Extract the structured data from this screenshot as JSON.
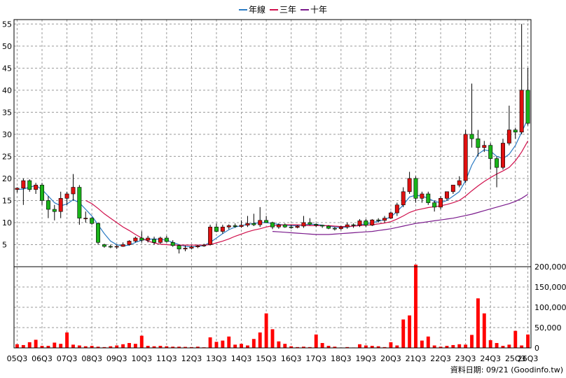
{
  "legend": {
    "items": [
      {
        "label": "年線",
        "color": "#2b7bc4"
      },
      {
        "label": "三年",
        "color": "#d0104c"
      },
      {
        "label": "十年",
        "color": "#7a1a8c"
      }
    ]
  },
  "source_note": "資料日期: 09/21 (Goodinfo.tw)",
  "colors": {
    "up": "#e01010",
    "down": "#19b319",
    "volume": "#ff0000"
  },
  "chart_data": {
    "type": "candlestick",
    "x_tick_labels": [
      "05Q3",
      "06Q3",
      "07Q3",
      "08Q3",
      "09Q3",
      "10Q3",
      "11Q3",
      "12Q3",
      "13Q3",
      "14Q3",
      "15Q3",
      "16Q3",
      "17Q3",
      "18Q3",
      "19Q3",
      "20Q3",
      "21Q3",
      "22Q3",
      "23Q3",
      "24Q3",
      "25Q3",
      "26Q3"
    ],
    "price_axis": {
      "min": 0,
      "max": 56,
      "ticks": [
        5,
        10,
        15,
        20,
        25,
        30,
        35,
        40,
        45,
        50,
        55
      ]
    },
    "volume_axis": {
      "min": 0,
      "max": 200000,
      "ticks": [
        0,
        50000,
        100000,
        150000,
        200000
      ],
      "tick_labels": [
        "0",
        "50,000",
        "100,000",
        "150,000",
        "200,000"
      ]
    },
    "candles": [
      [
        17.5,
        18,
        16.8,
        17.8
      ],
      [
        17.8,
        20,
        14,
        19.5
      ],
      [
        19.5,
        19.8,
        17,
        17.5
      ],
      [
        17.5,
        19,
        16.5,
        18.5
      ],
      [
        18.5,
        19,
        14,
        15
      ],
      [
        15,
        16,
        11,
        13
      ],
      [
        13,
        14,
        10.5,
        12.5
      ],
      [
        12.5,
        17,
        11,
        15.5
      ],
      [
        15.5,
        17,
        14,
        16.5
      ],
      [
        16.5,
        21,
        15,
        18
      ],
      [
        18,
        18.5,
        9.5,
        11
      ],
      [
        11,
        12.5,
        10,
        11
      ],
      [
        11,
        11.2,
        9.5,
        9.8
      ],
      [
        9.8,
        10,
        5,
        5.5
      ],
      [
        5,
        5.2,
        4.3,
        4.6
      ],
      [
        4.6,
        5,
        4.2,
        4.5
      ],
      [
        4.5,
        5,
        4,
        4.6
      ],
      [
        4.6,
        5.5,
        4.5,
        5
      ],
      [
        5,
        6,
        4.8,
        5.8
      ],
      [
        5.8,
        6.8,
        5.5,
        6.5
      ],
      [
        6.5,
        8,
        5.5,
        6
      ],
      [
        6,
        7,
        5.5,
        6.5
      ],
      [
        6.2,
        6.8,
        5,
        5.5
      ],
      [
        5.5,
        6.8,
        5.2,
        6.5
      ],
      [
        6.5,
        7,
        5.5,
        5.7
      ],
      [
        5.5,
        6,
        4.5,
        4.8
      ],
      [
        4.8,
        5,
        3,
        4
      ],
      [
        4,
        4.8,
        3.5,
        4.2
      ],
      [
        4.2,
        4.8,
        3.9,
        4.5
      ],
      [
        4.5,
        5,
        4.2,
        4.7
      ],
      [
        4.7,
        5.2,
        4.5,
        4.9
      ],
      [
        5,
        9.5,
        4.8,
        9
      ],
      [
        9,
        9.8,
        7.8,
        8
      ],
      [
        8,
        9.5,
        7.5,
        9
      ],
      [
        9,
        9.6,
        8.5,
        9.3
      ],
      [
        9.3,
        9.8,
        8.8,
        9.1
      ],
      [
        9.1,
        10.5,
        8.8,
        9.4
      ],
      [
        9.4,
        11.5,
        9,
        9.8
      ],
      [
        9.8,
        12,
        9.2,
        9.5
      ],
      [
        9.5,
        13.5,
        9,
        10.5
      ],
      [
        10.5,
        11.5,
        10,
        10
      ],
      [
        10,
        10.2,
        8.5,
        9
      ],
      [
        9,
        9.8,
        8.6,
        9.5
      ],
      [
        9.5,
        9.8,
        8.8,
        9
      ],
      [
        9,
        9.5,
        8.6,
        8.9
      ],
      [
        8.9,
        9.4,
        8.7,
        9.2
      ],
      [
        9.2,
        11.5,
        8.8,
        10
      ],
      [
        10,
        11,
        9.4,
        9.6
      ],
      [
        9.6,
        9.8,
        9,
        9.4
      ],
      [
        9.4,
        9.5,
        8.8,
        9.2
      ],
      [
        9.2,
        9.4,
        8.5,
        8.7
      ],
      [
        8.7,
        9,
        8.2,
        8.6
      ],
      [
        8.6,
        9.3,
        8.3,
        9
      ],
      [
        9,
        10,
        8.6,
        9.5
      ],
      [
        9.5,
        9.8,
        8.8,
        9.4
      ],
      [
        9.4,
        10.8,
        9,
        10.4
      ],
      [
        10.4,
        10.8,
        9,
        9.4
      ],
      [
        9.4,
        10.8,
        9.2,
        10.6
      ],
      [
        10.6,
        11,
        10,
        10.5
      ],
      [
        10.5,
        11.5,
        10,
        11
      ],
      [
        11,
        12.5,
        10.8,
        12.2
      ],
      [
        12.2,
        14.5,
        11.5,
        14
      ],
      [
        14,
        18,
        13.5,
        17
      ],
      [
        17,
        21.5,
        16.5,
        20
      ],
      [
        20,
        20.5,
        14.5,
        15.5
      ],
      [
        15.5,
        17,
        14.5,
        16.5
      ],
      [
        16.5,
        17,
        14,
        14.5
      ],
      [
        14.5,
        15,
        12.5,
        13.5
      ],
      [
        13.5,
        16,
        13,
        15.5
      ],
      [
        15.5,
        17,
        15,
        17
      ],
      [
        17,
        18.5,
        16.5,
        18.5
      ],
      [
        18.5,
        20.5,
        18,
        19.5
      ],
      [
        19.5,
        31,
        19,
        30
      ],
      [
        30,
        41.5,
        27,
        29
      ],
      [
        29,
        31,
        25,
        27
      ],
      [
        27,
        28.5,
        26,
        27.5
      ],
      [
        27.5,
        28,
        22,
        24.5
      ],
      [
        24.5,
        25,
        18,
        22.5
      ],
      [
        22.5,
        29,
        22,
        28
      ],
      [
        28,
        36.5,
        27.5,
        31
      ],
      [
        31,
        31.5,
        29,
        30.5
      ],
      [
        30.5,
        55,
        30,
        40
      ],
      [
        40,
        45,
        32,
        32.5
      ]
    ],
    "volumes": [
      9000,
      7000,
      14000,
      20000,
      5000,
      5000,
      13000,
      10000,
      38000,
      8000,
      6000,
      4000,
      5000,
      3000,
      2000,
      4000,
      6000,
      9000,
      12000,
      10000,
      30000,
      5000,
      4000,
      5000,
      4000,
      3000,
      3000,
      2500,
      2000,
      3000,
      1500,
      26000,
      15000,
      18000,
      28000,
      8000,
      10000,
      6000,
      22000,
      38000,
      85000,
      46000,
      16000,
      10000,
      4000,
      2000,
      3000,
      2000,
      33000,
      12000,
      5000,
      3000,
      1000,
      2000,
      1000,
      9000,
      6000,
      5000,
      4000,
      2000,
      14000,
      6000,
      70000,
      80000,
      205000,
      18000,
      28000,
      6000,
      3000,
      5000,
      7000,
      9000,
      8000,
      32000,
      122000,
      85000,
      19000,
      12000,
      5000,
      8000,
      42000,
      6000,
      33000
    ],
    "moving_averages": {
      "年線": [
        17.5,
        17.6,
        18,
        18.4,
        17.5,
        16,
        14.5,
        13.8,
        14.2,
        15.2,
        14.5,
        13,
        11.5,
        9.5,
        7.5,
        5.8,
        5,
        4.7,
        4.9,
        5.5,
        6,
        6.2,
        6.3,
        6.2,
        6,
        5.5,
        5,
        4.6,
        4.5,
        4.6,
        4.8,
        5.5,
        6.5,
        7.5,
        8.4,
        9,
        9.3,
        9.6,
        9.8,
        10,
        10,
        9.8,
        9.6,
        9.4,
        9.3,
        9.3,
        9.5,
        9.6,
        9.6,
        9.4,
        9.2,
        9,
        8.9,
        9,
        9.2,
        9.5,
        9.7,
        10,
        10.3,
        10.7,
        11.3,
        12.5,
        14,
        15.8,
        16.2,
        16,
        15.5,
        14.8,
        14.5,
        15,
        16,
        17,
        19.5,
        23,
        25.5,
        26.5,
        26.2,
        25,
        24.5,
        25.5,
        27.5,
        30.5,
        33.5
      ],
      "三年": [
        null,
        null,
        null,
        null,
        null,
        null,
        null,
        null,
        null,
        null,
        null,
        15,
        14.3,
        13.2,
        12,
        11,
        10,
        9,
        8.2,
        7.3,
        6.5,
        5.8,
        5.4,
        5.1,
        5,
        4.9,
        4.9,
        4.9,
        4.9,
        4.9,
        4.9,
        5,
        5.4,
        5.8,
        6.3,
        6.9,
        7.4,
        7.9,
        8.3,
        8.6,
        9,
        9.3,
        9.4,
        9.5,
        9.5,
        9.5,
        9.4,
        9.3,
        9.3,
        9.3,
        9.3,
        9.2,
        9.1,
        9.1,
        9.2,
        9.3,
        9.4,
        9.5,
        9.7,
        9.9,
        10.2,
        10.8,
        11.5,
        12.3,
        12.8,
        13.1,
        13.4,
        13.6,
        13.8,
        14.1,
        14.5,
        15,
        16,
        17.2,
        18.3,
        19.3,
        20.2,
        21,
        21.7,
        22.5,
        24,
        26,
        28.5
      ],
      "十年": [
        null,
        null,
        null,
        null,
        null,
        null,
        null,
        null,
        null,
        null,
        null,
        null,
        null,
        null,
        null,
        null,
        null,
        null,
        null,
        null,
        null,
        null,
        null,
        null,
        null,
        null,
        null,
        null,
        null,
        null,
        null,
        null,
        null,
        null,
        null,
        null,
        null,
        null,
        null,
        null,
        null,
        8,
        7.9,
        7.8,
        7.7,
        7.6,
        7.5,
        7.4,
        7.3,
        7.3,
        7.3,
        7.4,
        7.5,
        7.6,
        7.7,
        7.8,
        7.9,
        8,
        8.2,
        8.4,
        8.6,
        8.9,
        9.2,
        9.5,
        9.8,
        10,
        10.2,
        10.4,
        10.6,
        10.8,
        11,
        11.3,
        11.6,
        11.9,
        12.3,
        12.7,
        13.1,
        13.5,
        13.9,
        14.3,
        14.8,
        15.5,
        16.4
      ]
    },
    "grid": true,
    "legend_position": "top-center"
  }
}
